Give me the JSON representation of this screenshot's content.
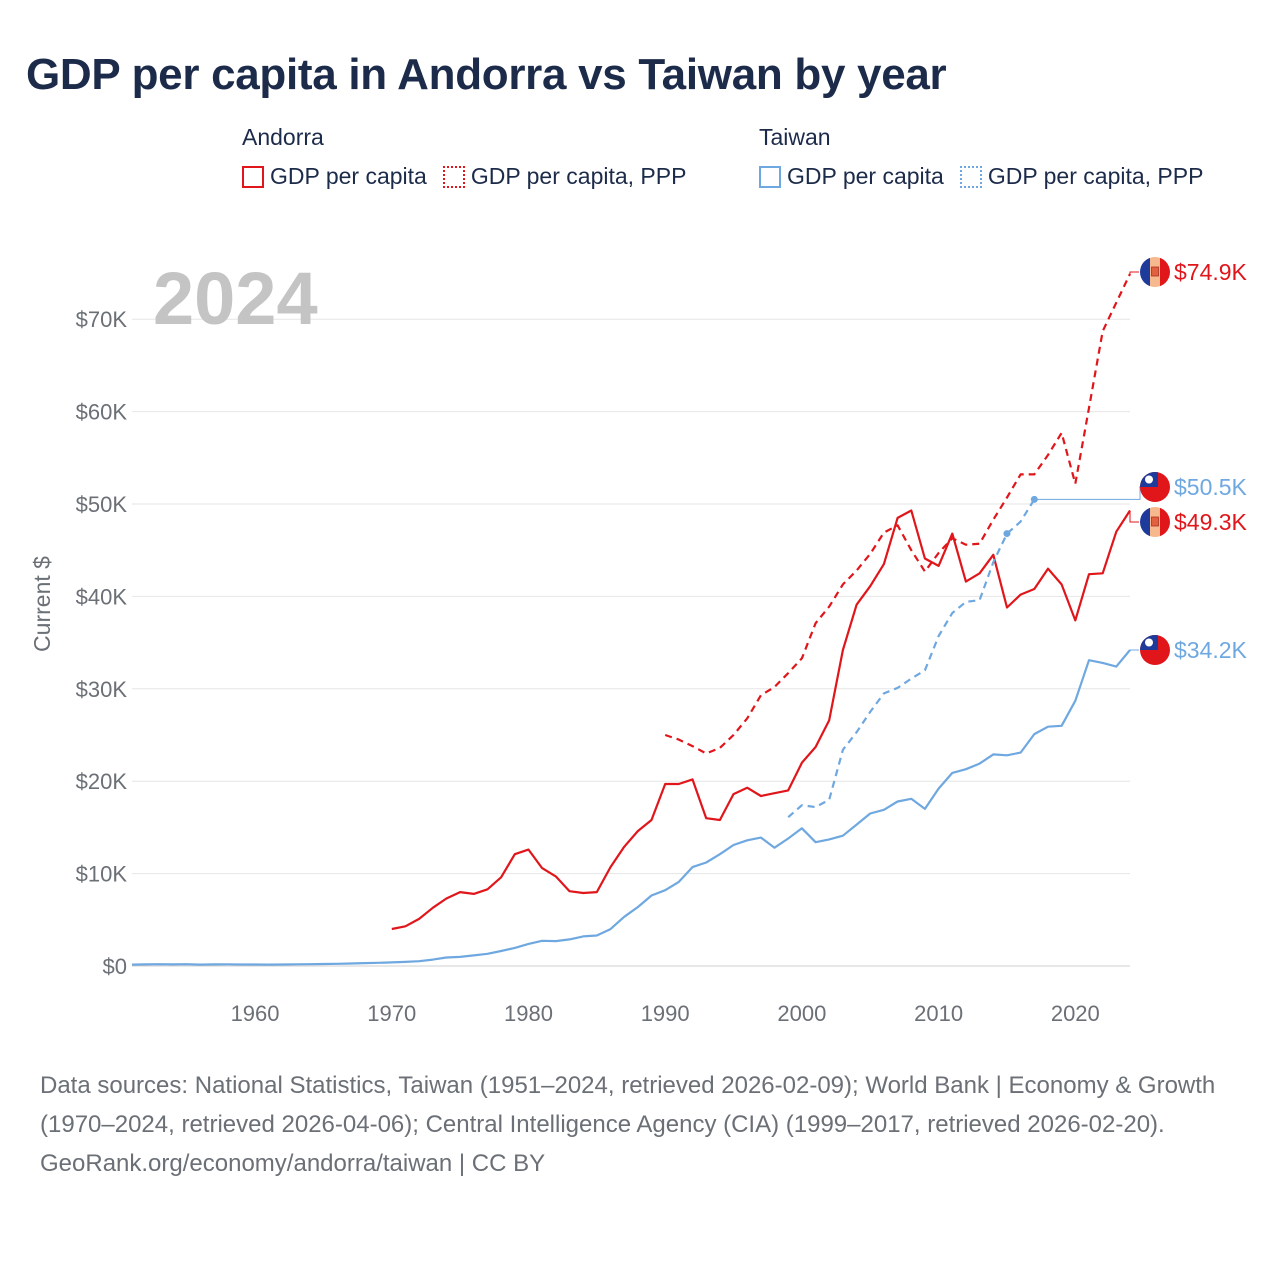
{
  "title": "GDP per capita in Andorra vs Taiwan by year",
  "legend": {
    "groups": [
      {
        "name": "Andorra",
        "color": "#e0161b",
        "items": [
          {
            "label": "GDP per capita",
            "style": "solid"
          },
          {
            "label": "GDP per capita, PPP",
            "style": "dotted"
          }
        ]
      },
      {
        "name": "Taiwan",
        "color": "#6fa8e0",
        "items": [
          {
            "label": "GDP per capita",
            "style": "solid"
          },
          {
            "label": "GDP per capita, PPP",
            "style": "dotted"
          }
        ]
      }
    ]
  },
  "year_label": "2024",
  "footer": {
    "sources": "Data sources: National Statistics, Taiwan (1951–2024, retrieved 2026-02-09); World Bank | Economy & Growth (1970–2024, retrieved 2026-04-06); Central Intelligence Agency (CIA) (1999–2017, retrieved 2026-02-20).",
    "credit": "GeoRank.org/economy/andorra/taiwan | CC BY"
  },
  "chart_data": {
    "type": "line",
    "title": "GDP per capita in Andorra vs Taiwan by year",
    "ylabel": "Current $",
    "xlabel": "",
    "xlim": [
      1951,
      2024
    ],
    "ylim": [
      0,
      75000
    ],
    "grid": true,
    "x_ticks": [
      1960,
      1970,
      1980,
      1990,
      2000,
      2010,
      2020
    ],
    "x_tick_labels": [
      "1960",
      "1970",
      "1980",
      "1990",
      "2000",
      "2010",
      "2020"
    ],
    "y_ticks": [
      0,
      10000,
      20000,
      30000,
      40000,
      50000,
      60000,
      70000
    ],
    "y_tick_labels": [
      "$0",
      "$10K",
      "$20K",
      "$30K",
      "$40K",
      "$50K",
      "$60K",
      "$70K"
    ],
    "series": [
      {
        "name": "Andorra GDP per capita",
        "country": "Andorra",
        "style": "solid",
        "color": "#e0161b",
        "end_label": "$49.3K",
        "x": [
          1970,
          1971,
          1972,
          1973,
          1974,
          1975,
          1976,
          1977,
          1978,
          1979,
          1980,
          1981,
          1982,
          1983,
          1984,
          1985,
          1986,
          1987,
          1988,
          1989,
          1990,
          1991,
          1992,
          1993,
          1994,
          1995,
          1996,
          1997,
          1998,
          1999,
          2000,
          2001,
          2002,
          2003,
          2004,
          2005,
          2006,
          2007,
          2008,
          2009,
          2010,
          2011,
          2012,
          2013,
          2014,
          2015,
          2016,
          2017,
          2018,
          2019,
          2020,
          2021,
          2022,
          2023,
          2024
        ],
        "values": [
          4000,
          4300,
          5100,
          6300,
          7300,
          8000,
          7800,
          8300,
          9600,
          12100,
          12600,
          10600,
          9700,
          8100,
          7900,
          8000,
          10700,
          12900,
          14600,
          15800,
          19700,
          19700,
          20200,
          16000,
          15800,
          18600,
          19300,
          18400,
          18700,
          19000,
          22000,
          23700,
          26600,
          34200,
          39100,
          41100,
          43500,
          48500,
          49300,
          44100,
          43300,
          46800,
          41600,
          42500,
          44500,
          38800,
          40200,
          40800,
          43000,
          41300,
          37400,
          42400,
          42500,
          47000,
          49300
        ]
      },
      {
        "name": "Andorra GDP per capita, PPP",
        "country": "Andorra",
        "style": "dashed",
        "color": "#e0161b",
        "end_label": "$74.9K",
        "x": [
          1990,
          1991,
          1992,
          1993,
          1994,
          1995,
          1996,
          1997,
          1998,
          1999,
          2000,
          2001,
          2002,
          2003,
          2004,
          2005,
          2006,
          2007,
          2008,
          2009,
          2010,
          2011,
          2012,
          2013,
          2014,
          2015,
          2016,
          2017,
          2018,
          2019,
          2020,
          2021,
          2022,
          2023,
          2024
        ],
        "values": [
          25000,
          24500,
          23800,
          23000,
          23600,
          25000,
          26800,
          29300,
          30200,
          31700,
          33300,
          37100,
          38900,
          41300,
          42800,
          44600,
          46900,
          47700,
          45000,
          42700,
          44700,
          46300,
          45600,
          45700,
          48300,
          50700,
          53200,
          53200,
          55300,
          57700,
          52200,
          60400,
          68700,
          71800,
          74900
        ]
      },
      {
        "name": "Taiwan GDP per capita",
        "country": "Taiwan",
        "style": "solid",
        "color": "#6fa8e0",
        "end_label": "$34.2K",
        "x": [
          1951,
          1952,
          1953,
          1954,
          1955,
          1956,
          1957,
          1958,
          1959,
          1960,
          1961,
          1962,
          1963,
          1964,
          1965,
          1966,
          1967,
          1968,
          1969,
          1970,
          1971,
          1972,
          1973,
          1974,
          1975,
          1976,
          1977,
          1978,
          1979,
          1980,
          1981,
          1982,
          1983,
          1984,
          1985,
          1986,
          1987,
          1988,
          1989,
          1990,
          1991,
          1992,
          1993,
          1994,
          1995,
          1996,
          1997,
          1998,
          1999,
          2000,
          2001,
          2002,
          2003,
          2004,
          2005,
          2006,
          2007,
          2008,
          2009,
          2010,
          2011,
          2012,
          2013,
          2014,
          2015,
          2016,
          2017,
          2018,
          2019,
          2020,
          2021,
          2022,
          2023,
          2024
        ],
        "values": [
          150,
          170,
          190,
          170,
          200,
          150,
          170,
          180,
          160,
          160,
          150,
          160,
          180,
          200,
          220,
          240,
          270,
          310,
          350,
          390,
          440,
          520,
          690,
          920,
          980,
          1150,
          1320,
          1620,
          1960,
          2390,
          2730,
          2690,
          2880,
          3200,
          3300,
          3990,
          5320,
          6370,
          7630,
          8200,
          9100,
          10700,
          11200,
          12100,
          13100,
          13600,
          13900,
          12800,
          13800,
          14900,
          13400,
          13700,
          14100,
          15300,
          16500,
          16900,
          17800,
          18100,
          17000,
          19200,
          20900,
          21300,
          21900,
          22900,
          22800,
          23100,
          25100,
          25900,
          26000,
          28700,
          33100,
          32800,
          32400,
          34200
        ]
      },
      {
        "name": "Taiwan GDP per capita, PPP",
        "country": "Taiwan",
        "style": "dashed",
        "color": "#6fa8e0",
        "end_label": "$50.5K",
        "x": [
          1999,
          2000,
          2001,
          2002,
          2003,
          2004,
          2005,
          2006,
          2007,
          2008,
          2009,
          2010,
          2011,
          2012,
          2013,
          2014,
          2015,
          2016,
          2017
        ],
        "values": [
          16100,
          17400,
          17200,
          18000,
          23400,
          25300,
          27500,
          29500,
          30100,
          31100,
          32000,
          35700,
          38200,
          39400,
          39600,
          43700,
          46800,
          48100,
          50500
        ]
      }
    ]
  }
}
